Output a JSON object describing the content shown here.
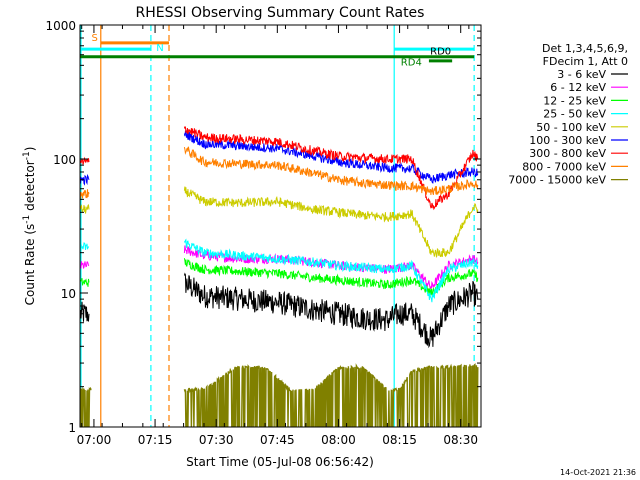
{
  "chart_data": {
    "type": "line",
    "title": "RHESSI Observing Summary Count Rates",
    "xlabel": "Start Time (05-Jul-08 06:56:42)",
    "ylabel": "Count Rate (s⁻¹ detector⁻¹)",
    "ylabel_main": "Count Rate (s",
    "ylabel_exp1": "-1",
    "ylabel_mid": " detector",
    "ylabel_exp2": "-1",
    "ylabel_end": ")",
    "yscale": "log",
    "ylim": [
      1,
      1000
    ],
    "xlim": [
      6.943,
      8.583
    ],
    "yticks": [
      {
        "value": 1,
        "label": "1"
      },
      {
        "value": 10,
        "label": "10"
      },
      {
        "value": 100,
        "label": "100"
      },
      {
        "value": 1000,
        "label": "1000"
      }
    ],
    "xticks": [
      {
        "value": 7.0,
        "label": "07:00"
      },
      {
        "value": 7.25,
        "label": "07:15"
      },
      {
        "value": 7.5,
        "label": "07:30"
      },
      {
        "value": 7.75,
        "label": "07:45"
      },
      {
        "value": 8.0,
        "label": "08:00"
      },
      {
        "value": 8.25,
        "label": "08:15"
      },
      {
        "value": 8.5,
        "label": "08:30"
      }
    ],
    "legend_header": [
      "Det 1,3,4,5,6,9,",
      "FDecim 1, Att 0"
    ],
    "legend_placement": "right",
    "series": [
      {
        "name": "3 - 6 keV",
        "color": "#000000",
        "segments": [
          {
            "x": [
              6.945,
              6.98
            ],
            "y": [
              7,
              7
            ]
          },
          {
            "x": [
              7.37,
              7.45,
              7.6,
              7.75,
              7.9,
              8.0,
              8.1,
              8.2,
              8.25,
              8.3,
              8.38,
              8.45,
              8.55,
              8.57
            ],
            "y": [
              12,
              9.5,
              9,
              8.5,
              7.5,
              7,
              6.5,
              6.3,
              7,
              7,
              4.5,
              8,
              10,
              9
            ]
          }
        ]
      },
      {
        "name": "6 - 12 keV",
        "color": "#ff00ff",
        "segments": [
          {
            "x": [
              6.945,
              6.98
            ],
            "y": [
              16,
              16
            ]
          },
          {
            "x": [
              7.37,
              7.45,
              7.6,
              7.75,
              7.9,
              8.0,
              8.1,
              8.2,
              8.25,
              8.3,
              8.38,
              8.45,
              8.55,
              8.57
            ],
            "y": [
              21,
              19,
              18,
              18,
              17,
              16,
              15.5,
              15,
              15.5,
              16,
              11,
              16,
              18,
              17
            ]
          }
        ]
      },
      {
        "name": "12 - 25 keV",
        "color": "#00ff00",
        "segments": [
          {
            "x": [
              6.945,
              6.98
            ],
            "y": [
              12,
              12
            ]
          },
          {
            "x": [
              7.37,
              7.45,
              7.6,
              7.75,
              7.9,
              8.0,
              8.1,
              8.2,
              8.25,
              8.3,
              8.38,
              8.45,
              8.55,
              8.57
            ],
            "y": [
              17,
              15,
              14.5,
              14,
              13,
              12.5,
              12,
              11.5,
              12,
              12.5,
              10,
              13,
              14,
              13
            ]
          }
        ]
      },
      {
        "name": "25 - 50 keV",
        "color": "#00ffff",
        "segments": [
          {
            "x": [
              6.945,
              6.98
            ],
            "y": [
              22,
              22
            ]
          },
          {
            "x": [
              7.37,
              7.45,
              7.6,
              7.75,
              7.9,
              8.0,
              8.1,
              8.2,
              8.25,
              8.3,
              8.38,
              8.45,
              8.55,
              8.57
            ],
            "y": [
              24,
              20,
              19,
              18,
              17,
              16,
              15.5,
              15,
              15.5,
              16,
              9,
              15,
              17,
              16
            ]
          }
        ]
      },
      {
        "name": "50 - 100 keV",
        "color": "#cccc00",
        "segments": [
          {
            "x": [
              6.945,
              6.98
            ],
            "y": [
              42,
              42
            ]
          },
          {
            "x": [
              7.37,
              7.45,
              7.6,
              7.75,
              7.9,
              8.0,
              8.1,
              8.2,
              8.25,
              8.3,
              8.38,
              8.45,
              8.55,
              8.57
            ],
            "y": [
              58,
              48,
              47,
              48,
              42,
              40,
              38,
              37,
              38,
              39,
              20,
              20,
              44,
              42
            ]
          }
        ]
      },
      {
        "name": "100 - 300 keV",
        "color": "#0000ff",
        "segments": [
          {
            "x": [
              6.945,
              6.98
            ],
            "y": [
              70,
              70
            ]
          },
          {
            "x": [
              7.37,
              7.45,
              7.6,
              7.75,
              7.9,
              8.0,
              8.1,
              8.2,
              8.25,
              8.3,
              8.38,
              8.45,
              8.55,
              8.57
            ],
            "y": [
              155,
              130,
              125,
              120,
              105,
              95,
              90,
              86,
              85,
              85,
              70,
              76,
              80,
              78
            ]
          }
        ]
      },
      {
        "name": "300 - 800 keV",
        "color": "#ff0000",
        "segments": [
          {
            "x": [
              6.945,
              6.98
            ],
            "y": [
              95,
              95
            ]
          },
          {
            "x": [
              7.37,
              7.45,
              7.6,
              7.75,
              7.9,
              8.0,
              8.1,
              8.2,
              8.25,
              8.3,
              8.38,
              8.45,
              8.55,
              8.57
            ],
            "y": [
              170,
              145,
              140,
              135,
              115,
              105,
              102,
              100,
              100,
              100,
              44,
              55,
              110,
              100
            ]
          }
        ]
      },
      {
        "name": "800 - 7000 keV",
        "color": "#ff8000",
        "segments": [
          {
            "x": [
              6.945,
              6.98
            ],
            "y": [
              55,
              55
            ]
          },
          {
            "x": [
              7.37,
              7.45,
              7.6,
              7.75,
              7.9,
              8.0,
              8.1,
              8.2,
              8.25,
              8.3,
              8.38,
              8.45,
              8.55,
              8.57
            ],
            "y": [
              120,
              95,
              92,
              90,
              78,
              70,
              66,
              64,
              63,
              63,
              57,
              60,
              66,
              64
            ]
          }
        ]
      },
      {
        "name": "7000 - 15000 keV",
        "color": "#808000",
        "segments": [
          {
            "x": [
              6.945,
              6.99
            ],
            "y": [
              1.9,
              1.9
            ]
          },
          {
            "x": [
              7.37,
              7.45,
              7.58,
              7.7,
              7.8,
              7.9,
              8.0,
              8.1,
              8.2,
              8.25,
              8.3,
              8.38,
              8.45,
              8.55,
              8.57
            ],
            "y": [
              1.9,
              1.9,
              2.8,
              2.8,
              1.9,
              1.9,
              2.8,
              2.8,
              1.9,
              1.9,
              2.6,
              2.8,
              2.8,
              2.9,
              2.8
            ]
          }
        ]
      }
    ],
    "annotations": {
      "vertical_lines": [
        {
          "x": 6.947,
          "color": "#00ffff",
          "style": "solid"
        },
        {
          "x": 7.028,
          "color": "#ff8000",
          "style": "solid"
        },
        {
          "x": 7.233,
          "color": "#00ffff",
          "style": "dashed"
        },
        {
          "x": 7.307,
          "color": "#ff8000",
          "style": "dashed"
        },
        {
          "x": 8.228,
          "color": "#00ffff",
          "style": "solid"
        },
        {
          "x": 8.555,
          "color": "#00ffff",
          "style": "dashed"
        }
      ],
      "horizontal_bars": [
        {
          "x0": 7.028,
          "x1": 7.307,
          "y": 735,
          "color": "#ff8000",
          "width": 3
        },
        {
          "x0": 6.943,
          "x1": 7.233,
          "y": 660,
          "color": "#00ffff",
          "width": 3
        },
        {
          "x0": 8.228,
          "x1": 8.555,
          "y": 660,
          "color": "#00ffff",
          "width": 3
        },
        {
          "x0": 6.943,
          "x1": 8.555,
          "y": 580,
          "color": "#008000",
          "width": 3
        },
        {
          "x0": 8.37,
          "x1": 8.465,
          "y": 540,
          "color": "#008000",
          "width": 3
        }
      ],
      "labels": [
        {
          "text": "S",
          "x": 6.99,
          "y": 760,
          "color": "#ff8000"
        },
        {
          "text": "N",
          "x": 7.255,
          "y": 640,
          "color": "#00ffff"
        },
        {
          "text": "RD0",
          "x": 8.375,
          "y": 600,
          "color": "#000000"
        },
        {
          "text": "RD4",
          "x": 8.255,
          "y": 500,
          "color": "#008000"
        }
      ]
    },
    "grid": false
  },
  "footer": {
    "timestamp": "14-Oct-2021 21:36"
  }
}
